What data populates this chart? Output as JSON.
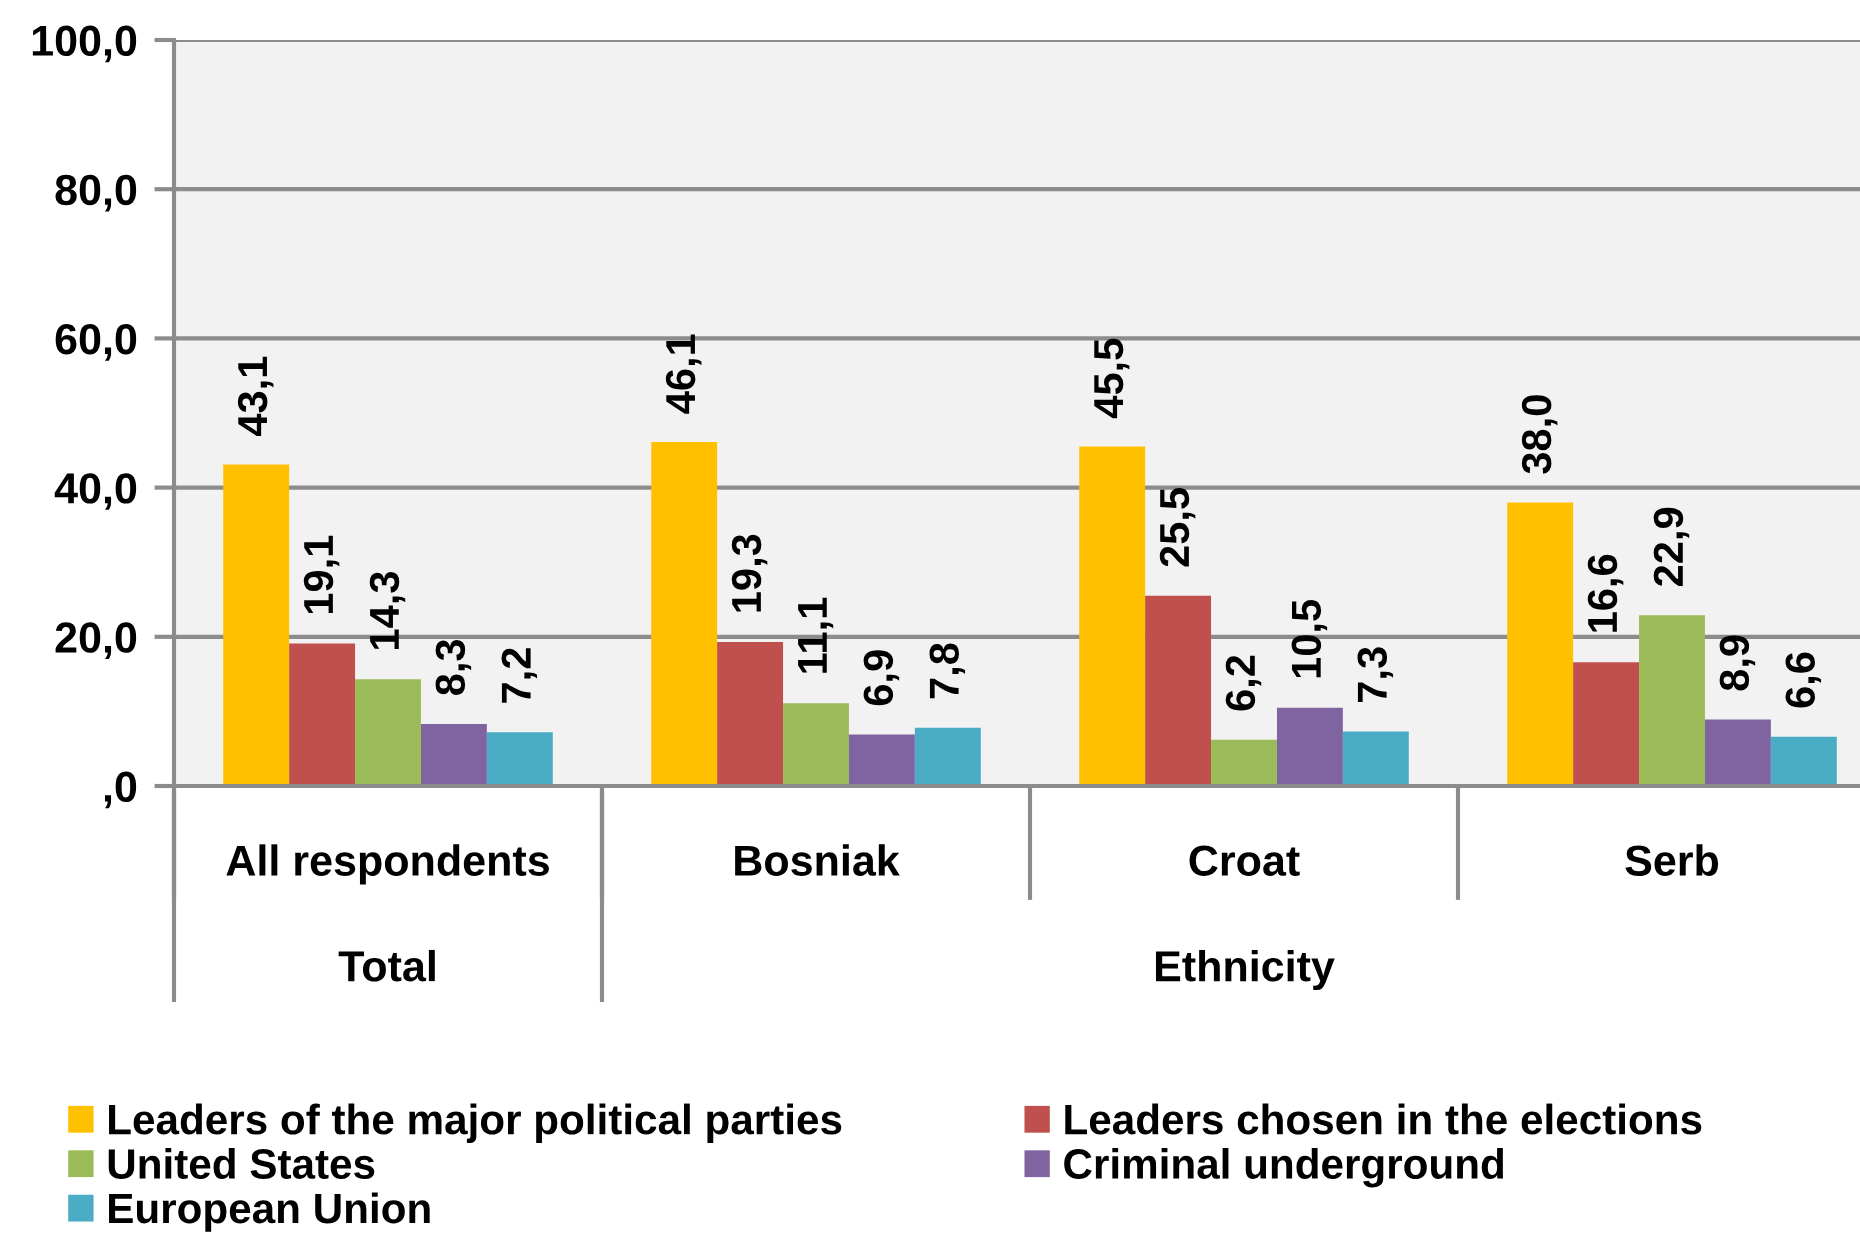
{
  "chart_data": {
    "type": "bar",
    "categories": [
      "All respondents",
      "Bosniak",
      "Croat",
      "Serb"
    ],
    "series": [
      {
        "name": "Leaders of the major political parties",
        "color": "#ffc000",
        "values": [
          43.1,
          46.1,
          45.5,
          38.0
        ],
        "value_labels": [
          "43,1",
          "46,1",
          "45,5",
          "38,0"
        ]
      },
      {
        "name": "Leaders chosen in the elections",
        "color": "#c0504d",
        "values": [
          19.1,
          19.3,
          25.5,
          16.6
        ],
        "value_labels": [
          "19,1",
          "19,3",
          "25,5",
          "16,6"
        ]
      },
      {
        "name": "United States",
        "color": "#9bbb59",
        "values": [
          14.3,
          11.1,
          6.2,
          22.9
        ],
        "value_labels": [
          "14,3",
          "11,1",
          "6,2",
          "22,9"
        ]
      },
      {
        "name": "Criminal underground",
        "color": "#8064a2",
        "values": [
          8.3,
          6.9,
          10.5,
          8.9
        ],
        "value_labels": [
          "8,3",
          "6,9",
          "10,5",
          "8,9"
        ]
      },
      {
        "name": "European Union",
        "color": "#4bacc6",
        "values": [
          7.2,
          7.8,
          7.3,
          6.6
        ],
        "value_labels": [
          "7,2",
          "7,8",
          "7,3",
          "6,6"
        ]
      }
    ],
    "ylim": [
      0,
      100
    ],
    "yticks": [
      {
        "value": 0,
        "label": ",0"
      },
      {
        "value": 20,
        "label": "20,0"
      },
      {
        "value": 40,
        "label": "40,0"
      },
      {
        "value": 60,
        "label": "60,0"
      },
      {
        "value": 80,
        "label": "80,0"
      },
      {
        "value": 100,
        "label": "100,0"
      }
    ],
    "grid": "y",
    "legend": "bottom",
    "annotations": [
      "Total",
      "Ethnicity"
    ]
  }
}
